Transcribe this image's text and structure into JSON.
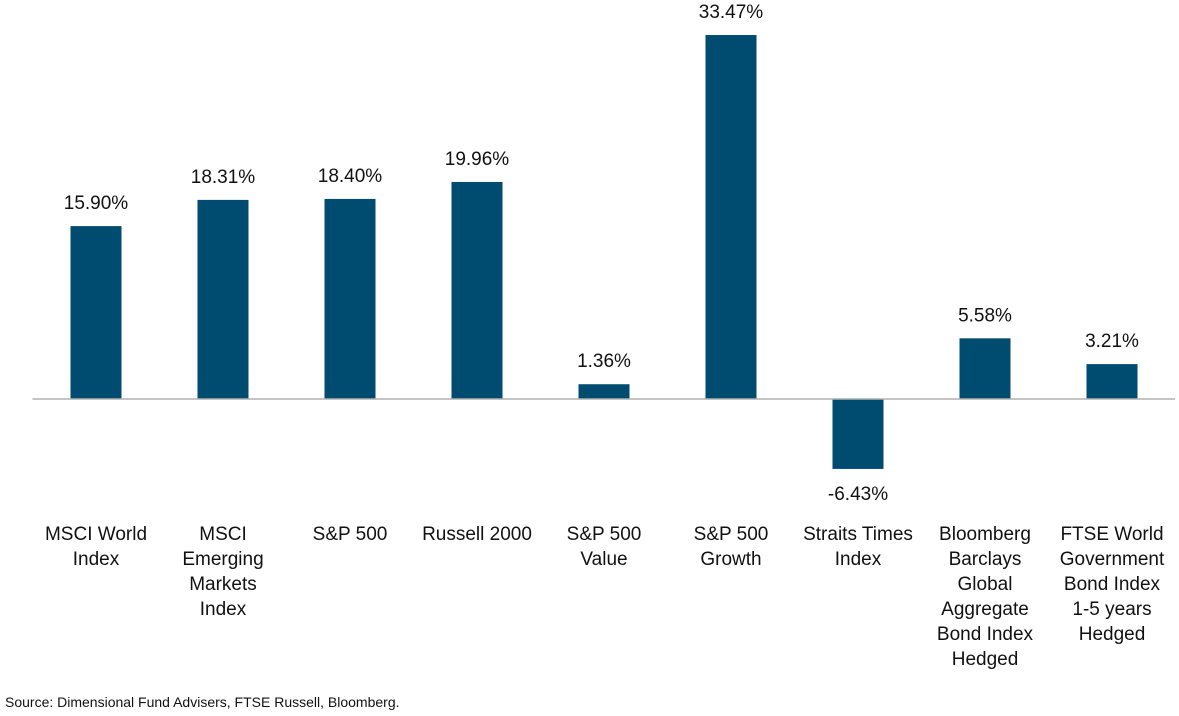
{
  "chart_data": {
    "type": "bar",
    "categories": [
      "MSCI World Index",
      "MSCI Emerging Markets Index",
      "S&P 500",
      "Russell 2000",
      "S&P 500 Value",
      "S&P 500 Growth",
      "Straits Times Index",
      "Bloomberg Barclays Global Aggregate Bond Index Hedged",
      "FTSE World Government Bond Index 1-5 years Hedged"
    ],
    "values": [
      15.9,
      18.31,
      18.4,
      19.96,
      1.36,
      33.47,
      -6.43,
      5.58,
      3.21
    ],
    "value_labels": [
      "15.90%",
      "18.31%",
      "18.40%",
      "19.96%",
      "1.36%",
      "33.47%",
      "-6.43%",
      "5.58%",
      "3.21%"
    ],
    "color": "#004b70",
    "ylim": [
      -10,
      35
    ],
    "source": "Source: Dimensional Fund Advisers, FTSE Russell, Bloomberg."
  }
}
